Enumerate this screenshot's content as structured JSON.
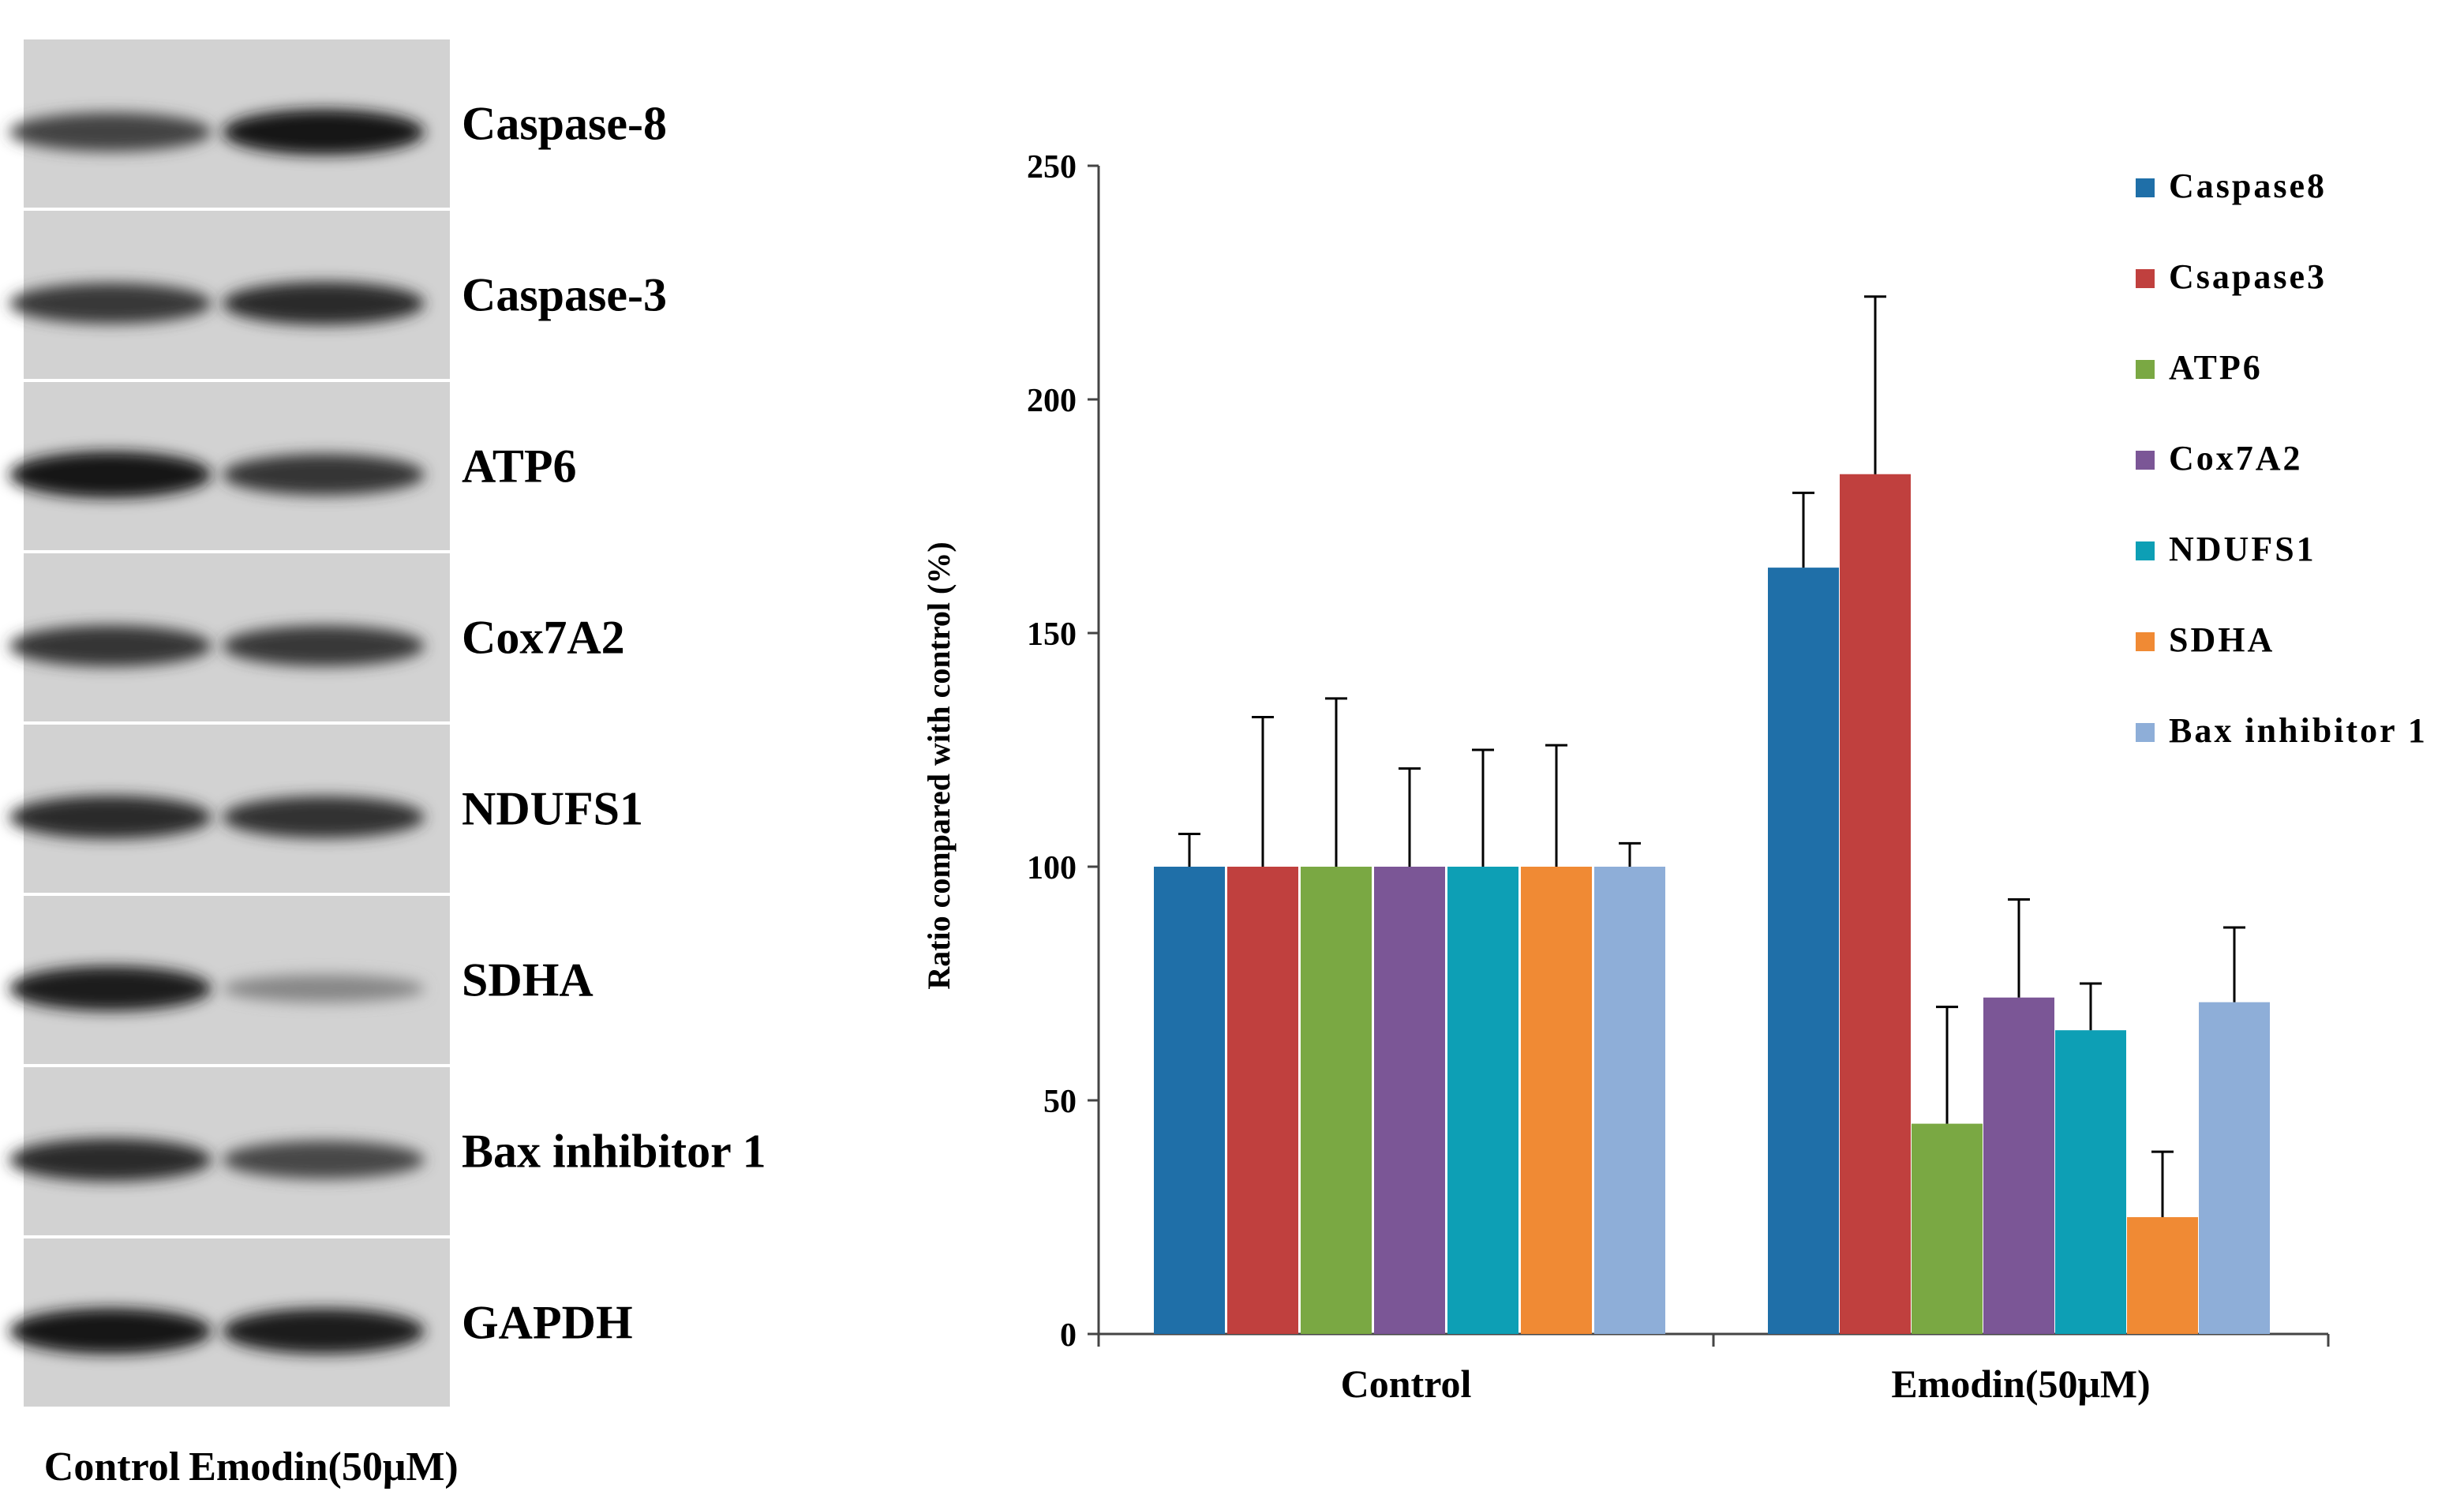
{
  "figure": {
    "blot": {
      "proteins": [
        "Caspase-8",
        "Caspase-3",
        "ATP6",
        "Cox7A2",
        "NDUFS1",
        "SDHA",
        "Bax inhibitor 1",
        "GAPDH"
      ],
      "lane_labels": [
        "Control",
        "Emodin(50μM)"
      ],
      "band_intensity": [
        [
          0.72,
          0.95
        ],
        [
          0.78,
          0.86
        ],
        [
          0.98,
          0.8
        ],
        [
          0.8,
          0.78
        ],
        [
          0.86,
          0.82
        ],
        [
          0.92,
          0.35
        ],
        [
          0.85,
          0.7
        ],
        [
          0.95,
          0.94
        ]
      ]
    }
  },
  "chart_data": {
    "type": "bar",
    "categories": [
      "Control",
      "Emodin(50μM)"
    ],
    "ylabel": "Ratio compared  with control (%)",
    "xlabel": "",
    "ylim": [
      0,
      250
    ],
    "yticks": [
      0,
      50,
      100,
      150,
      200,
      250
    ],
    "legend_position": "top-right",
    "series": [
      {
        "name": "Caspase8",
        "color": "#1f6fa8",
        "values": [
          100,
          164
        ],
        "errors": [
          7,
          16
        ]
      },
      {
        "name": "Csapase3",
        "color": "#c0403e",
        "values": [
          100,
          184
        ],
        "errors": [
          32,
          38
        ]
      },
      {
        "name": "ATP6",
        "color": "#7aa843",
        "values": [
          100,
          45
        ],
        "errors": [
          36,
          25
        ]
      },
      {
        "name": "Cox7A2",
        "color": "#7b5696",
        "values": [
          100,
          72
        ],
        "errors": [
          21,
          21
        ]
      },
      {
        "name": "NDUFS1",
        "color": "#0d9fb5",
        "values": [
          100,
          65
        ],
        "errors": [
          25,
          10
        ]
      },
      {
        "name": "SDHA",
        "color": "#f08a34",
        "values": [
          100,
          25
        ],
        "errors": [
          26,
          14
        ]
      },
      {
        "name": "Bax inhibitor 1",
        "color": "#8eaed8",
        "values": [
          100,
          71
        ],
        "errors": [
          5,
          16
        ]
      }
    ]
  }
}
